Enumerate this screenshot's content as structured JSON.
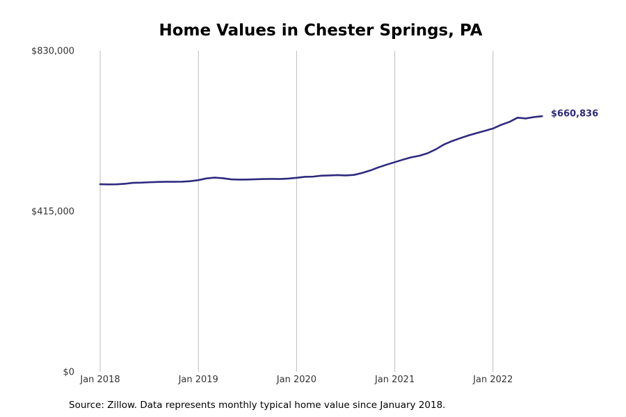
{
  "chart_data": {
    "type": "line",
    "title": "Home Values in Chester Springs, PA",
    "source_note": "Source: Zillow. Data represents monthly typical home value since January 2018.",
    "xlabel": "",
    "ylabel": "",
    "y_ticks": [
      {
        "value": 830000,
        "label": "$830,000"
      },
      {
        "value": 415000,
        "label": "$415,000"
      },
      {
        "value": 0,
        "label": "$0"
      }
    ],
    "x_ticks": [
      {
        "value": 0,
        "label": "Jan 2018"
      },
      {
        "value": 12,
        "label": "Jan 2019"
      },
      {
        "value": 24,
        "label": "Jan 2020"
      },
      {
        "value": 36,
        "label": "Jan 2021"
      },
      {
        "value": 48,
        "label": "Jan 2022"
      }
    ],
    "ylim": [
      0,
      830000
    ],
    "xlim": [
      0,
      54
    ],
    "grid": "vertical lines at year ticks",
    "line_color": "#2e2a7e",
    "end_label": "$660,836",
    "series": [
      {
        "x": [
          0,
          1,
          2,
          3,
          4,
          5,
          6,
          7,
          8,
          9,
          10,
          11,
          12,
          13,
          14,
          15,
          16,
          17,
          18,
          19,
          20,
          21,
          22,
          23,
          24,
          25,
          26,
          27,
          28,
          29,
          30,
          31,
          32,
          33,
          34,
          35,
          36,
          37,
          38,
          39,
          40,
          41,
          42,
          43,
          44,
          45,
          46,
          47,
          48,
          49,
          50,
          51,
          52,
          53,
          54
        ],
        "values": [
          485000,
          484500,
          484800,
          486000,
          488500,
          489000,
          490000,
          490800,
          491300,
          491300,
          491500,
          492800,
          495500,
          500000,
          502000,
          500500,
          497500,
          496800,
          497100,
          497800,
          498400,
          498600,
          498400,
          499500,
          501500,
          504000,
          504600,
          507000,
          507600,
          508500,
          507600,
          509000,
          514000,
          520500,
          528500,
          535500,
          542000,
          548500,
          554500,
          558500,
          565000,
          575000,
          587500,
          596500,
          604000,
          611000,
          617000,
          623000,
          629000,
          638500,
          646000,
          657000,
          655000,
          658500,
          660836
        ]
      }
    ]
  }
}
